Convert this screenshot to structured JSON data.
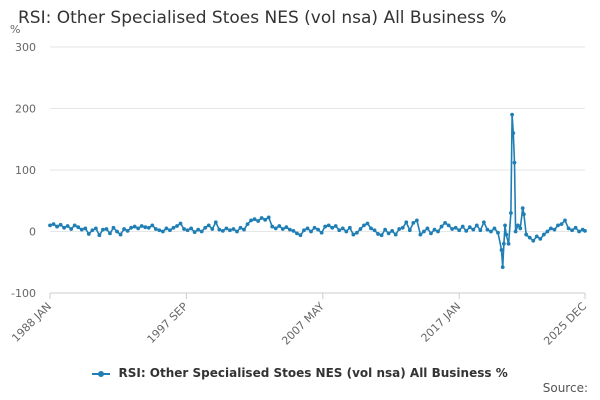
{
  "chart_data": {
    "type": "line",
    "title": "RSI: Other Specialised Stoes NES (vol nsa) All Business %",
    "y_unit": "%",
    "ylim": [
      -100,
      300
    ],
    "y_ticks": [
      "300",
      "200",
      "100",
      "0",
      "-100"
    ],
    "y_tick_values": [
      300,
      200,
      100,
      0,
      -100
    ],
    "xlim": [
      "1988-01",
      "2025-12"
    ],
    "x_tick_labels": [
      "1988 JAN",
      "1997 SEP",
      "2007 MAY",
      "2017 JAN",
      "2025 DEC"
    ],
    "x_tick_dates": [
      "1988-01",
      "1997-09",
      "2007-05",
      "2017-01",
      "2025-12"
    ],
    "grid": true,
    "legend_position": "bottom",
    "series": [
      {
        "name": "RSI: Other Specialised Stoes NES (vol nsa) All Business %",
        "color": "#1f7fb5",
        "points": [
          [
            "1988-01",
            10
          ],
          [
            "1988-04",
            12
          ],
          [
            "1988-07",
            8
          ],
          [
            "1988-10",
            11
          ],
          [
            "1989-01",
            6
          ],
          [
            "1989-04",
            9
          ],
          [
            "1989-07",
            4
          ],
          [
            "1989-10",
            10
          ],
          [
            "1990-01",
            7
          ],
          [
            "1990-04",
            3
          ],
          [
            "1990-07",
            5
          ],
          [
            "1990-10",
            -4
          ],
          [
            "1991-01",
            2
          ],
          [
            "1991-04",
            5
          ],
          [
            "1991-07",
            -6
          ],
          [
            "1991-10",
            3
          ],
          [
            "1992-01",
            4
          ],
          [
            "1992-04",
            -3
          ],
          [
            "1992-07",
            6
          ],
          [
            "1992-10",
            0
          ],
          [
            "1993-01",
            -5
          ],
          [
            "1993-04",
            4
          ],
          [
            "1993-07",
            1
          ],
          [
            "1993-10",
            6
          ],
          [
            "1994-01",
            8
          ],
          [
            "1994-04",
            5
          ],
          [
            "1994-07",
            9
          ],
          [
            "1994-10",
            7
          ],
          [
            "1995-01",
            6
          ],
          [
            "1995-04",
            10
          ],
          [
            "1995-07",
            4
          ],
          [
            "1995-10",
            2
          ],
          [
            "1996-01",
            0
          ],
          [
            "1996-04",
            5
          ],
          [
            "1996-07",
            2
          ],
          [
            "1996-10",
            6
          ],
          [
            "1997-01",
            9
          ],
          [
            "1997-04",
            13
          ],
          [
            "1997-07",
            4
          ],
          [
            "1997-10",
            2
          ],
          [
            "1998-01",
            5
          ],
          [
            "1998-04",
            -1
          ],
          [
            "1998-07",
            3
          ],
          [
            "1998-10",
            0
          ],
          [
            "1999-01",
            6
          ],
          [
            "1999-04",
            10
          ],
          [
            "1999-07",
            4
          ],
          [
            "1999-10",
            15
          ],
          [
            "2000-01",
            3
          ],
          [
            "2000-04",
            1
          ],
          [
            "2000-07",
            5
          ],
          [
            "2000-10",
            2
          ],
          [
            "2001-01",
            4
          ],
          [
            "2001-04",
            0
          ],
          [
            "2001-07",
            6
          ],
          [
            "2001-10",
            3
          ],
          [
            "2002-01",
            12
          ],
          [
            "2002-04",
            18
          ],
          [
            "2002-07",
            20
          ],
          [
            "2002-10",
            17
          ],
          [
            "2003-01",
            22
          ],
          [
            "2003-04",
            19
          ],
          [
            "2003-07",
            23
          ],
          [
            "2003-10",
            8
          ],
          [
            "2004-01",
            5
          ],
          [
            "2004-04",
            9
          ],
          [
            "2004-07",
            4
          ],
          [
            "2004-10",
            7
          ],
          [
            "2005-01",
            3
          ],
          [
            "2005-04",
            1
          ],
          [
            "2005-07",
            -3
          ],
          [
            "2005-10",
            -6
          ],
          [
            "2006-01",
            2
          ],
          [
            "2006-04",
            5
          ],
          [
            "2006-07",
            0
          ],
          [
            "2006-10",
            6
          ],
          [
            "2007-01",
            3
          ],
          [
            "2007-04",
            -2
          ],
          [
            "2007-07",
            8
          ],
          [
            "2007-10",
            10
          ],
          [
            "2008-01",
            6
          ],
          [
            "2008-04",
            9
          ],
          [
            "2008-07",
            2
          ],
          [
            "2008-10",
            5
          ],
          [
            "2009-01",
            0
          ],
          [
            "2009-04",
            6
          ],
          [
            "2009-07",
            -5
          ],
          [
            "2009-10",
            -2
          ],
          [
            "2010-01",
            4
          ],
          [
            "2010-04",
            10
          ],
          [
            "2010-07",
            13
          ],
          [
            "2010-10",
            5
          ],
          [
            "2011-01",
            2
          ],
          [
            "2011-04",
            -4
          ],
          [
            "2011-07",
            -6
          ],
          [
            "2011-10",
            3
          ],
          [
            "2012-01",
            -3
          ],
          [
            "2012-04",
            1
          ],
          [
            "2012-07",
            -5
          ],
          [
            "2012-10",
            4
          ],
          [
            "2013-01",
            6
          ],
          [
            "2013-04",
            15
          ],
          [
            "2013-07",
            2
          ],
          [
            "2013-10",
            14
          ],
          [
            "2014-01",
            18
          ],
          [
            "2014-04",
            -5
          ],
          [
            "2014-07",
            0
          ],
          [
            "2014-10",
            5
          ],
          [
            "2015-01",
            -3
          ],
          [
            "2015-04",
            3
          ],
          [
            "2015-07",
            0
          ],
          [
            "2015-10",
            8
          ],
          [
            "2016-01",
            14
          ],
          [
            "2016-04",
            10
          ],
          [
            "2016-07",
            4
          ],
          [
            "2016-10",
            6
          ],
          [
            "2017-01",
            2
          ],
          [
            "2017-04",
            8
          ],
          [
            "2017-07",
            1
          ],
          [
            "2017-10",
            7
          ],
          [
            "2018-01",
            3
          ],
          [
            "2018-04",
            10
          ],
          [
            "2018-07",
            2
          ],
          [
            "2018-10",
            15
          ],
          [
            "2019-01",
            3
          ],
          [
            "2019-04",
            0
          ],
          [
            "2019-07",
            5
          ],
          [
            "2019-10",
            -2
          ],
          [
            "2020-01",
            -30
          ],
          [
            "2020-02",
            -58
          ],
          [
            "2020-03",
            -20
          ],
          [
            "2020-04",
            10
          ],
          [
            "2020-05",
            -5
          ],
          [
            "2020-07",
            -20
          ],
          [
            "2020-09",
            30
          ],
          [
            "2020-10",
            190
          ],
          [
            "2020-11",
            160
          ],
          [
            "2020-12",
            112
          ],
          [
            "2021-01",
            0
          ],
          [
            "2021-03",
            10
          ],
          [
            "2021-05",
            5
          ],
          [
            "2021-07",
            38
          ],
          [
            "2021-08",
            28
          ],
          [
            "2021-10",
            -5
          ],
          [
            "2022-01",
            -10
          ],
          [
            "2022-04",
            -15
          ],
          [
            "2022-07",
            -8
          ],
          [
            "2022-10",
            -12
          ],
          [
            "2023-01",
            -5
          ],
          [
            "2023-04",
            0
          ],
          [
            "2023-07",
            5
          ],
          [
            "2023-10",
            3
          ],
          [
            "2024-01",
            10
          ],
          [
            "2024-04",
            12
          ],
          [
            "2024-07",
            18
          ],
          [
            "2024-10",
            5
          ],
          [
            "2025-01",
            2
          ],
          [
            "2025-04",
            6
          ],
          [
            "2025-07",
            0
          ],
          [
            "2025-10",
            3
          ],
          [
            "2025-12",
            1
          ]
        ]
      }
    ]
  },
  "source_label": "Source:"
}
